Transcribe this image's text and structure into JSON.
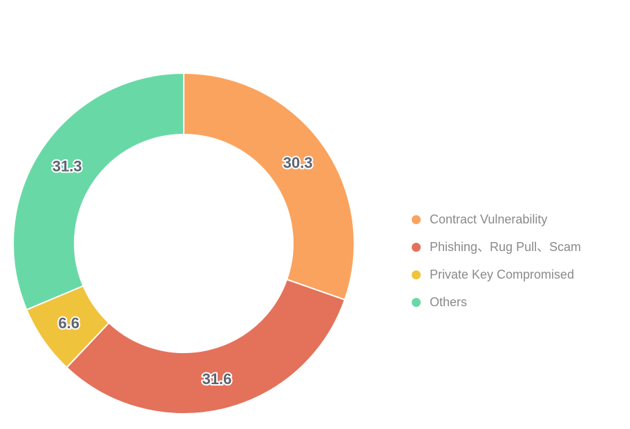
{
  "page": {
    "background_color": "#FFFFFF"
  },
  "chart_data": {
    "type": "pie",
    "variant": "donut",
    "title": "",
    "start_angle_deg_from_top_clockwise": 0,
    "direction": "clockwise",
    "inner_radius_ratio": 0.64,
    "show_values_on_slices": true,
    "slice_border_color": "#FFFFFF",
    "label_text_color": "#5E6470",
    "label_outline_color": "#FFFFFF",
    "legend_text_color": "#8A8A8A",
    "segments": [
      {
        "label": "Contract Vulnerability",
        "value": 30.3,
        "color": "#FAA35E"
      },
      {
        "label": "Phishing、Rug Pull、Scam",
        "value": 31.6,
        "color": "#E4715A"
      },
      {
        "label": "Private Key Compromised",
        "value": 6.6,
        "color": "#F0C33C"
      },
      {
        "label": "Others",
        "value": 31.3,
        "color": "#68D9A6"
      }
    ],
    "legend": {
      "position": "right",
      "items": [
        "Contract Vulnerability",
        "Phishing、Rug Pull、Scam",
        "Private Key Compromised",
        "Others"
      ]
    }
  }
}
